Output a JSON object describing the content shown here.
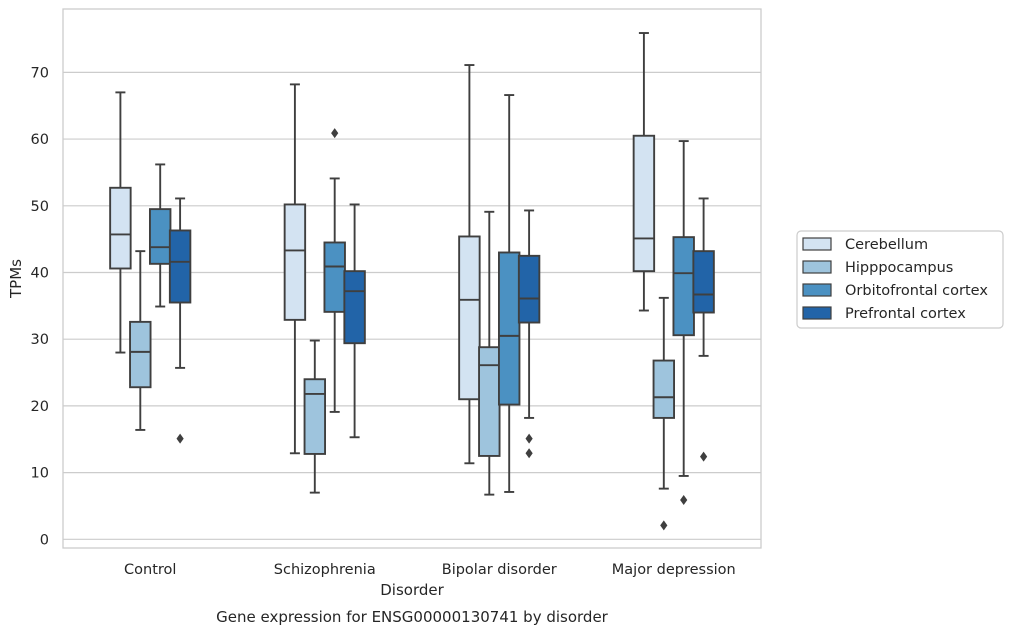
{
  "chart_data": {
    "type": "boxplot",
    "title": "",
    "caption": "Gene expression for ENSG00000130741 by disorder",
    "xlabel": "Disorder",
    "ylabel": "TPMs",
    "ylim": [
      -1.3,
      79.5
    ],
    "yticks": [
      0,
      10,
      20,
      30,
      40,
      50,
      60,
      70
    ],
    "grid": "horizontal",
    "legend_position": "right",
    "categories": [
      "Control",
      "Schizophrenia",
      "Bipolar disorder",
      "Major depression"
    ],
    "series": [
      {
        "name": "Cerebellum",
        "color": "#d3e3f2",
        "boxes": [
          {
            "whislo": 28.0,
            "q1": 40.6,
            "med": 45.7,
            "q3": 52.7,
            "whishi": 67.0,
            "fliers": []
          },
          {
            "whislo": 12.9,
            "q1": 32.9,
            "med": 43.3,
            "q3": 50.2,
            "whishi": 68.2,
            "fliers": []
          },
          {
            "whislo": 11.4,
            "q1": 21.0,
            "med": 35.9,
            "q3": 45.4,
            "whishi": 71.1,
            "fliers": []
          },
          {
            "whislo": 34.3,
            "q1": 40.2,
            "med": 45.1,
            "q3": 60.5,
            "whishi": 75.9,
            "fliers": []
          }
        ]
      },
      {
        "name": "Hipppocampus",
        "color": "#9ec4dd",
        "boxes": [
          {
            "whislo": 16.4,
            "q1": 22.8,
            "med": 28.1,
            "q3": 32.6,
            "whishi": 43.2,
            "fliers": []
          },
          {
            "whislo": 7.0,
            "q1": 12.8,
            "med": 21.8,
            "q3": 24.0,
            "whishi": 29.8,
            "fliers": []
          },
          {
            "whislo": 6.7,
            "q1": 12.5,
            "med": 26.1,
            "q3": 28.8,
            "whishi": 49.1,
            "fliers": []
          },
          {
            "whislo": 7.6,
            "q1": 18.2,
            "med": 21.3,
            "q3": 26.8,
            "whishi": 36.2,
            "fliers": [
              2.1
            ]
          }
        ]
      },
      {
        "name": "Orbitofrontal cortex",
        "color": "#4b91c2",
        "boxes": [
          {
            "whislo": 34.9,
            "q1": 41.3,
            "med": 43.8,
            "q3": 49.5,
            "whishi": 56.2,
            "fliers": []
          },
          {
            "whislo": 19.1,
            "q1": 34.1,
            "med": 40.9,
            "q3": 44.5,
            "whishi": 54.1,
            "fliers": [
              60.9
            ]
          },
          {
            "whislo": 7.1,
            "q1": 20.2,
            "med": 30.5,
            "q3": 43.0,
            "whishi": 66.6,
            "fliers": []
          },
          {
            "whislo": 9.5,
            "q1": 30.6,
            "med": 39.9,
            "q3": 45.3,
            "whishi": 59.7,
            "fliers": [
              5.9
            ]
          }
        ]
      },
      {
        "name": "Prefrontal cortex",
        "color": "#2264a8",
        "boxes": [
          {
            "whislo": 25.7,
            "q1": 35.5,
            "med": 41.6,
            "q3": 46.3,
            "whishi": 51.1,
            "fliers": [
              15.1
            ]
          },
          {
            "whislo": 15.3,
            "q1": 29.4,
            "med": 37.2,
            "q3": 40.2,
            "whishi": 50.2,
            "fliers": []
          },
          {
            "whislo": 18.2,
            "q1": 32.5,
            "med": 36.1,
            "q3": 42.5,
            "whishi": 49.3,
            "fliers": [
              15.1,
              12.9
            ]
          },
          {
            "whislo": 27.5,
            "q1": 34.0,
            "med": 36.7,
            "q3": 43.2,
            "whishi": 51.1,
            "fliers": [
              12.4
            ]
          }
        ]
      }
    ]
  }
}
